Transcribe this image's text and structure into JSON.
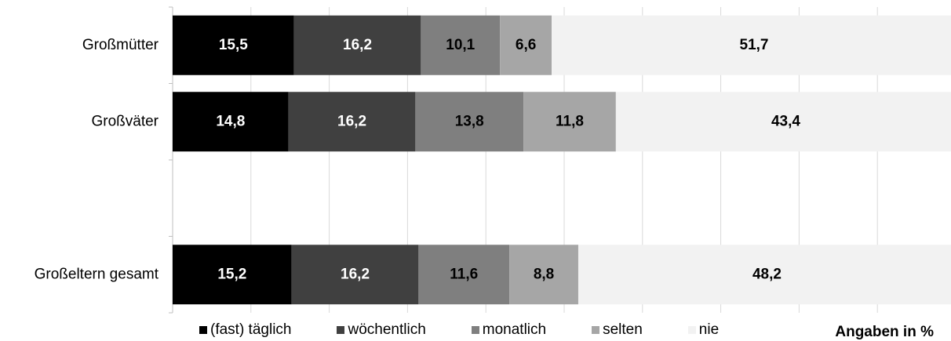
{
  "chart_data": {
    "type": "bar",
    "orientation": "horizontal",
    "stacked": true,
    "categories": [
      "Großmütter",
      "Großväter",
      "",
      "Großeltern gesamt"
    ],
    "series": [
      {
        "name": "(fast) täglich",
        "color": "#000000",
        "values": [
          15.5,
          14.8,
          null,
          15.2
        ],
        "labels": [
          "15,5",
          "14,8",
          "",
          "15,2"
        ]
      },
      {
        "name": "wöchentlich",
        "color": "#404040",
        "values": [
          16.2,
          16.2,
          null,
          16.2
        ],
        "labels": [
          "16,2",
          "16,2",
          "",
          "16,2"
        ]
      },
      {
        "name": "monatlich",
        "color": "#7f7f7f",
        "values": [
          10.1,
          13.8,
          null,
          11.6
        ],
        "labels": [
          "10,1",
          "13,8",
          "",
          "11,6"
        ]
      },
      {
        "name": "selten",
        "color": "#a6a6a6",
        "values": [
          6.6,
          11.8,
          null,
          8.8
        ],
        "labels": [
          "6,6",
          "11,8",
          "",
          "8,8"
        ]
      },
      {
        "name": "nie",
        "color": "#f2f2f2",
        "values": [
          51.7,
          43.4,
          null,
          48.2
        ],
        "labels": [
          "51,7",
          "43,4",
          "",
          "48,2"
        ]
      }
    ],
    "xlim": [
      0,
      100
    ],
    "grid": true,
    "legend_position": "bottom",
    "note": "Angaben in %"
  }
}
